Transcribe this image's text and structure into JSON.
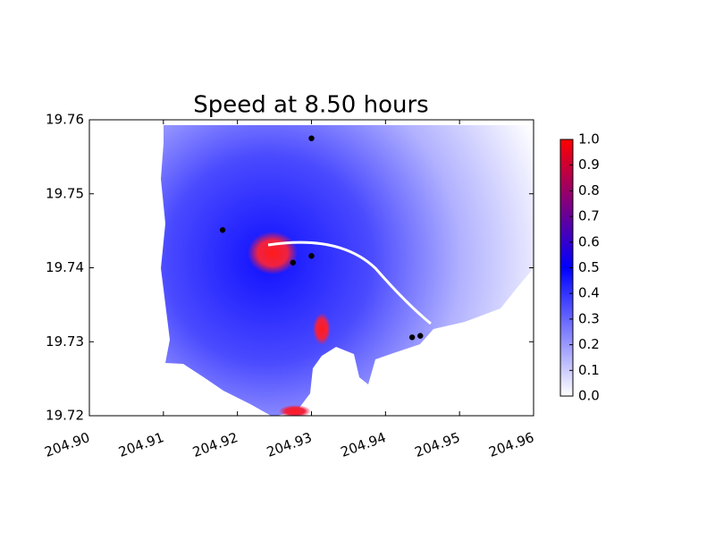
{
  "chart_data": {
    "type": "scatter",
    "title": "Speed at 8.50 hours",
    "x": [
      204.93,
      204.918,
      204.93,
      204.9275,
      204.9436,
      204.9447
    ],
    "values": [
      19.7575,
      19.7451,
      19.7416,
      19.7407,
      19.7306,
      19.7308
    ],
    "color": "#000000",
    "xlim": [
      204.9,
      204.96
    ],
    "xticks": [
      {
        "value": 204.9,
        "label": "204.90"
      },
      204.91,
      204.92,
      204.93,
      204.94,
      204.95,
      204.96
    ],
    "ylim": [
      19.72,
      19.76
    ],
    "yticks": [
      19.72,
      19.73,
      19.74,
      19.75,
      19.76
    ],
    "grid": false,
    "colorbar": {
      "lim": [
        0,
        1
      ],
      "colors": [
        "#ffffff",
        "#0000ff",
        "#ff0000"
      ],
      "ticks": [
        {
          "value": 0,
          "label": "0.0"
        },
        0.1,
        0.2,
        0.3,
        0.4,
        0.5,
        0.6,
        0.7,
        0.8,
        0.9,
        {
          "value": 1,
          "label": "1.0"
        }
      ]
    }
  }
}
